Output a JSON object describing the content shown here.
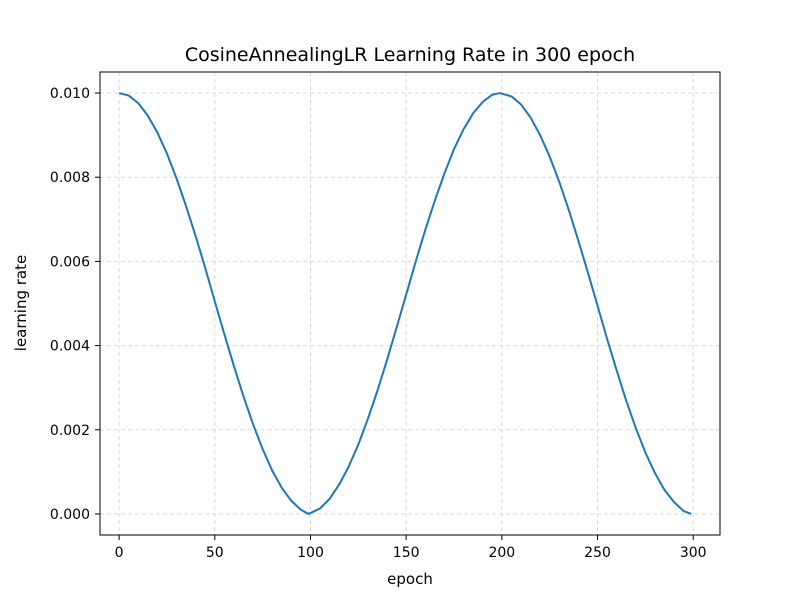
{
  "chart_data": {
    "type": "line",
    "title": "CosineAnnealingLR Learning Rate in 300 epoch",
    "xlabel": "epoch",
    "ylabel": "learning rate",
    "xlim": [
      -10,
      314
    ],
    "ylim": [
      -0.0005,
      0.0105
    ],
    "grid": true,
    "legend": "none",
    "colors": {
      "line": "#1f77b4",
      "grid": "#d9d9d9",
      "axis": "#000000"
    },
    "x_ticks": [
      "0",
      "50",
      "100",
      "150",
      "200",
      "250",
      "300"
    ],
    "x_tick_values": [
      0,
      50,
      100,
      150,
      200,
      250,
      300
    ],
    "y_ticks": [
      "0.000",
      "0.002",
      "0.004",
      "0.006",
      "0.008",
      "0.010"
    ],
    "y_tick_values": [
      0,
      0.002,
      0.004,
      0.006,
      0.008,
      0.01
    ],
    "series": [
      {
        "x": [
          0,
          5,
          10,
          15,
          20,
          25,
          30,
          35,
          40,
          45,
          50,
          55,
          60,
          65,
          70,
          75,
          80,
          85,
          90,
          95,
          99,
          105,
          110,
          115,
          120,
          125,
          130,
          135,
          140,
          145,
          150,
          155,
          160,
          165,
          170,
          175,
          180,
          185,
          190,
          195,
          199,
          205,
          210,
          215,
          220,
          225,
          230,
          235,
          240,
          245,
          250,
          255,
          260,
          265,
          270,
          275,
          280,
          285,
          290,
          295,
          299
        ],
        "y": [
          0.01,
          0.00994,
          0.00976,
          0.00946,
          0.00906,
          0.00856,
          0.00797,
          0.00731,
          0.0066,
          0.00584,
          0.00505,
          0.00427,
          0.00351,
          0.00279,
          0.00213,
          0.00154,
          0.00103,
          0.00062,
          0.00031,
          0.0001,
          0.0,
          0.00013,
          0.00036,
          0.0007,
          0.00113,
          0.00165,
          0.00226,
          0.00293,
          0.00366,
          0.00443,
          0.00521,
          0.006,
          0.00675,
          0.00745,
          0.00809,
          0.00867,
          0.00914,
          0.00952,
          0.00979,
          0.00996,
          0.01,
          0.00992,
          0.00973,
          0.00942,
          0.009,
          0.00849,
          0.00789,
          0.00722,
          0.00649,
          0.00573,
          0.00495,
          0.00416,
          0.00341,
          0.00269,
          0.00204,
          0.00146,
          0.00097,
          0.00057,
          0.00028,
          7e-05,
          0.0
        ]
      }
    ]
  }
}
